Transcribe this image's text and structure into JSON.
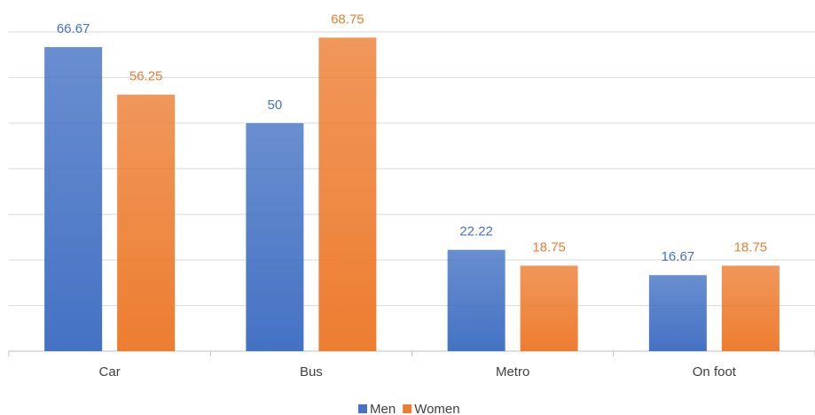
{
  "chart_data": {
    "type": "bar",
    "categories": [
      "Car",
      "Bus",
      "Metro",
      "On foot"
    ],
    "series": [
      {
        "name": "Men",
        "color": "#4472c4",
        "values": [
          66.67,
          50,
          22.22,
          16.67
        ]
      },
      {
        "name": "Women",
        "color": "#ed7d31",
        "values": [
          56.25,
          68.75,
          18.75,
          18.75
        ]
      }
    ],
    "ylim": [
      0,
      70
    ],
    "yticks": [
      0,
      10,
      20,
      30,
      40,
      50,
      60,
      70
    ],
    "grid": true,
    "legend": "bottom"
  }
}
